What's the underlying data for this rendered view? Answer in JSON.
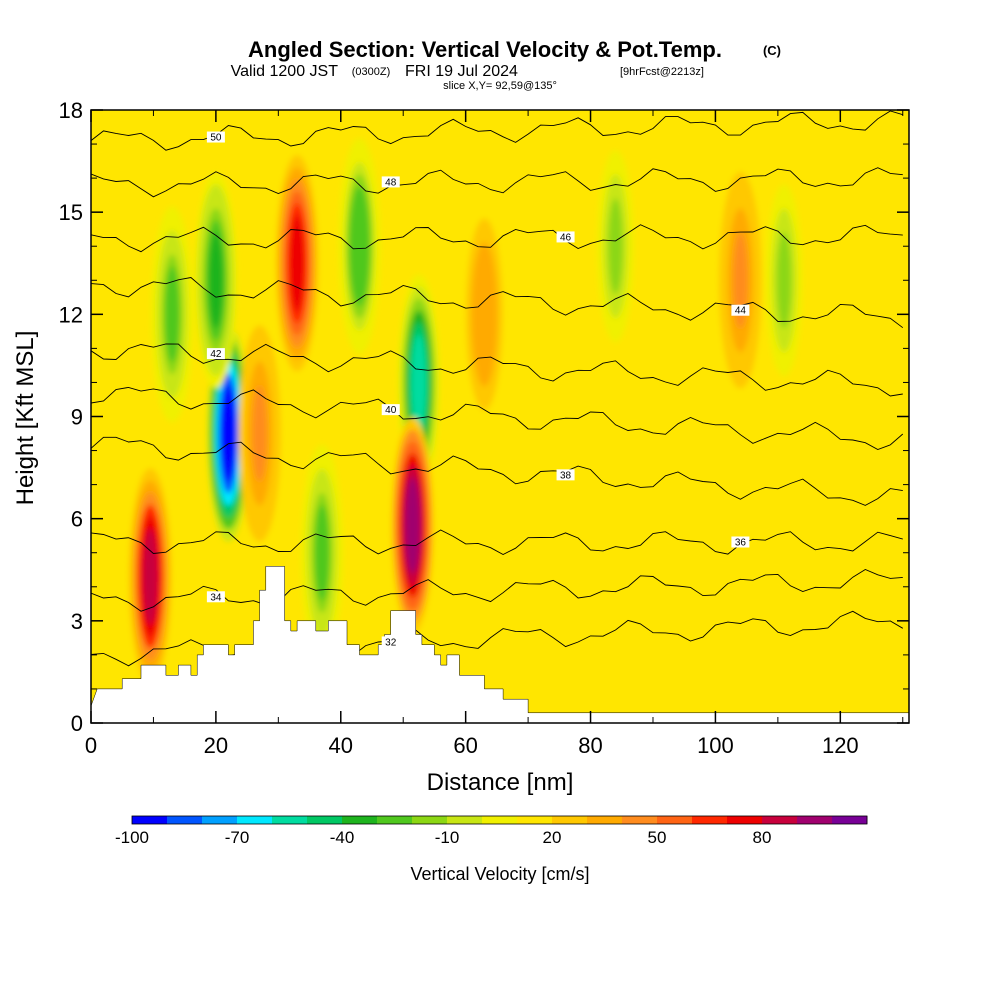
{
  "title": {
    "main": "Angled Section: Vertical Velocity & Pot.Temp.",
    "main_suffix": "(C)",
    "valid_prefix": "Valid 1200 JST",
    "valid_utc": "(0300Z)",
    "valid_date": "FRI 19 Jul 2024",
    "forecast": "[9hrFcst@2213z]",
    "slice": "slice X,Y= 92,59@135°"
  },
  "colorbar": {
    "title": "Vertical Velocity [cm/s]",
    "tick_labels": [
      "-100",
      "-70",
      "-40",
      "-10",
      "20",
      "50",
      "80"
    ],
    "colors": [
      "#0000ff",
      "#0055ff",
      "#00a0ff",
      "#00e8ff",
      "#00dca0",
      "#00c864",
      "#1eb41e",
      "#50c81e",
      "#8cd714",
      "#c8e614",
      "#f0f000",
      "#ffe600",
      "#ffc800",
      "#ffaa00",
      "#ff8c1e",
      "#ff6414",
      "#ff2800",
      "#ee0000",
      "#c8003c",
      "#a0006e",
      "#780096"
    ]
  },
  "chart_data": {
    "type": "heatmap",
    "xlabel": "Distance [nm]",
    "ylabel": "Height [Kft MSL]",
    "xlim": [
      0,
      131
    ],
    "ylim": [
      0,
      18
    ],
    "xticks": [
      0,
      20,
      40,
      60,
      80,
      100,
      120
    ],
    "yticks": [
      0,
      3,
      6,
      9,
      12,
      15,
      18
    ],
    "field": "Vertical Velocity [cm/s]",
    "field_range": [
      -100,
      90
    ],
    "background_value": 5,
    "updrafts": [
      {
        "x": 9.5,
        "y": 4.3,
        "peak": 65
      },
      {
        "x": 33,
        "y": 13.5,
        "peak": 55
      },
      {
        "x": 51.5,
        "y": 5.8,
        "peak": 80
      },
      {
        "x": 27,
        "y": 8.5,
        "peak": 30
      },
      {
        "x": 104,
        "y": 13,
        "peak": 30
      },
      {
        "x": 63,
        "y": 12,
        "peak": 25
      }
    ],
    "downdrafts": [
      {
        "x": 22,
        "y": 8.5,
        "peak": -100
      },
      {
        "x": 20,
        "y": 13,
        "peak": -40
      },
      {
        "x": 52.5,
        "y": 10,
        "peak": -60
      },
      {
        "x": 43,
        "y": 14,
        "peak": -35
      },
      {
        "x": 13,
        "y": 12,
        "peak": -30
      },
      {
        "x": 37,
        "y": 5,
        "peak": -30
      },
      {
        "x": 84,
        "y": 14,
        "peak": -20
      },
      {
        "x": 111,
        "y": 13,
        "peak": -20
      }
    ],
    "theta_contours": [
      {
        "value": 50,
        "label": "50",
        "y_left": 17.1,
        "y_right": 17.7
      },
      {
        "value": 48,
        "label": "48",
        "y_left": 15.8,
        "y_right": 16.0
      },
      {
        "value": 46,
        "label": "46",
        "y_left": 14.2,
        "y_right": 14.3
      },
      {
        "value": 44,
        "label": "44",
        "y_left": 12.9,
        "y_right": 11.9
      },
      {
        "value": 42,
        "label": "42",
        "y_left": 11.0,
        "y_right": 9.9
      },
      {
        "value": 40,
        "label": "40",
        "y_left": 9.7,
        "y_right": 8.3
      },
      {
        "value": 38,
        "label": "38",
        "y_left": 8.2,
        "y_right": 6.6
      },
      {
        "value": 36,
        "label": "36",
        "y_left": 5.3,
        "y_right": 5.3
      },
      {
        "value": 34,
        "label": "34",
        "y_left": 3.6,
        "y_right": 4.2
      },
      {
        "value": 32,
        "label": "32",
        "y_left": 2.0,
        "y_right": 3.0
      }
    ],
    "terrain": [
      [
        0,
        0.5
      ],
      [
        1,
        1.0
      ],
      [
        5,
        1.0
      ],
      [
        5,
        1.3
      ],
      [
        8,
        1.3
      ],
      [
        8,
        1.7
      ],
      [
        12,
        1.7
      ],
      [
        12,
        1.4
      ],
      [
        14,
        1.4
      ],
      [
        14,
        1.7
      ],
      [
        16,
        1.7
      ],
      [
        16,
        1.4
      ],
      [
        17,
        1.4
      ],
      [
        17,
        2.0
      ],
      [
        18,
        2.0
      ],
      [
        18,
        2.3
      ],
      [
        22,
        2.3
      ],
      [
        22,
        2.0
      ],
      [
        23,
        2.0
      ],
      [
        23,
        2.3
      ],
      [
        26,
        2.3
      ],
      [
        26,
        3.0
      ],
      [
        27,
        3.0
      ],
      [
        27,
        3.9
      ],
      [
        28,
        3.9
      ],
      [
        28,
        4.6
      ],
      [
        31,
        4.6
      ],
      [
        31,
        3.0
      ],
      [
        32,
        3.0
      ],
      [
        32,
        2.7
      ],
      [
        33,
        2.7
      ],
      [
        33,
        3.0
      ],
      [
        36,
        3.0
      ],
      [
        36,
        2.7
      ],
      [
        38,
        2.7
      ],
      [
        38,
        3.0
      ],
      [
        41,
        3.0
      ],
      [
        41,
        2.3
      ],
      [
        43,
        2.3
      ],
      [
        43,
        2.0
      ],
      [
        46,
        2.0
      ],
      [
        46,
        2.3
      ],
      [
        47,
        2.3
      ],
      [
        47,
        2.6
      ],
      [
        48,
        2.6
      ],
      [
        48,
        3.3
      ],
      [
        52,
        3.3
      ],
      [
        52,
        2.6
      ],
      [
        53,
        2.6
      ],
      [
        53,
        2.3
      ],
      [
        55,
        2.3
      ],
      [
        55,
        2.0
      ],
      [
        56,
        2.0
      ],
      [
        56,
        1.7
      ],
      [
        57,
        1.7
      ],
      [
        57,
        2.0
      ],
      [
        59,
        2.0
      ],
      [
        59,
        1.4
      ],
      [
        63,
        1.4
      ],
      [
        63,
        1.0
      ],
      [
        66,
        1.0
      ],
      [
        66,
        0.7
      ],
      [
        70,
        0.7
      ],
      [
        70,
        0.3
      ],
      [
        131,
        0.3
      ]
    ]
  }
}
